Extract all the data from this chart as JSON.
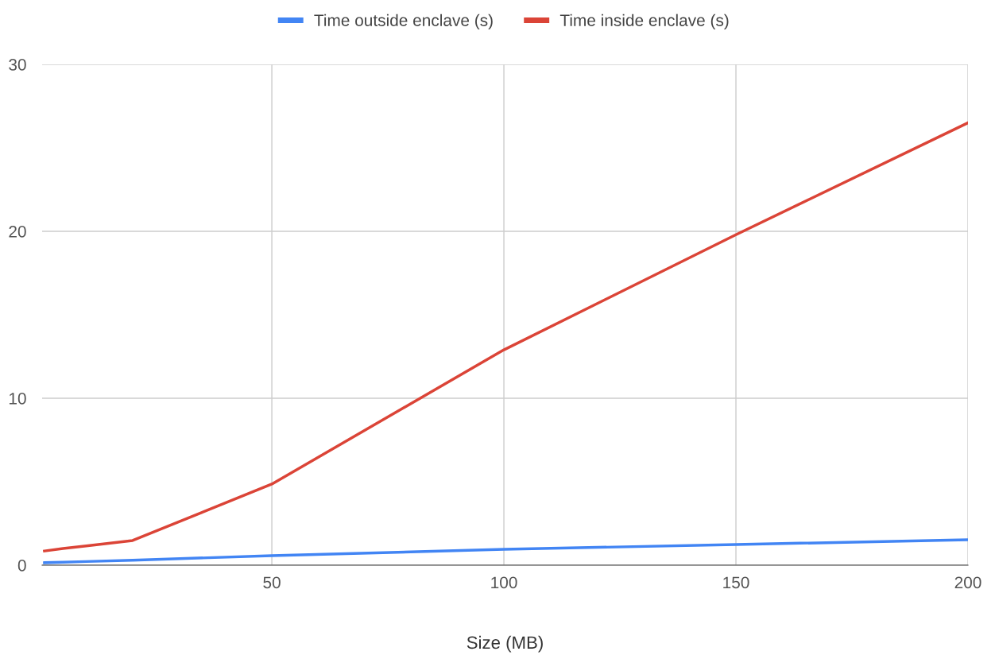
{
  "chart_data": {
    "type": "line",
    "xlabel": "Size (MB)",
    "x": [
      1,
      5,
      10,
      20,
      50,
      100,
      150,
      200
    ],
    "series": [
      {
        "name": "Time outside enclave (s)",
        "color": "#4285f4",
        "values": [
          0.15,
          0.18,
          0.22,
          0.3,
          0.57,
          0.95,
          1.24,
          1.52
        ]
      },
      {
        "name": "Time inside enclave (s)",
        "color": "#db4437",
        "values": [
          0.85,
          1.0,
          1.15,
          1.48,
          4.86,
          12.9,
          19.8,
          26.5
        ]
      }
    ],
    "xlim": [
      0.5,
      200
    ],
    "xticks": [
      50,
      100,
      150,
      200
    ],
    "ylim": [
      0,
      30
    ],
    "yticks": [
      0,
      10,
      20,
      30
    ],
    "grid": true,
    "legend": "top",
    "marker": "none",
    "line_style": "solid"
  }
}
